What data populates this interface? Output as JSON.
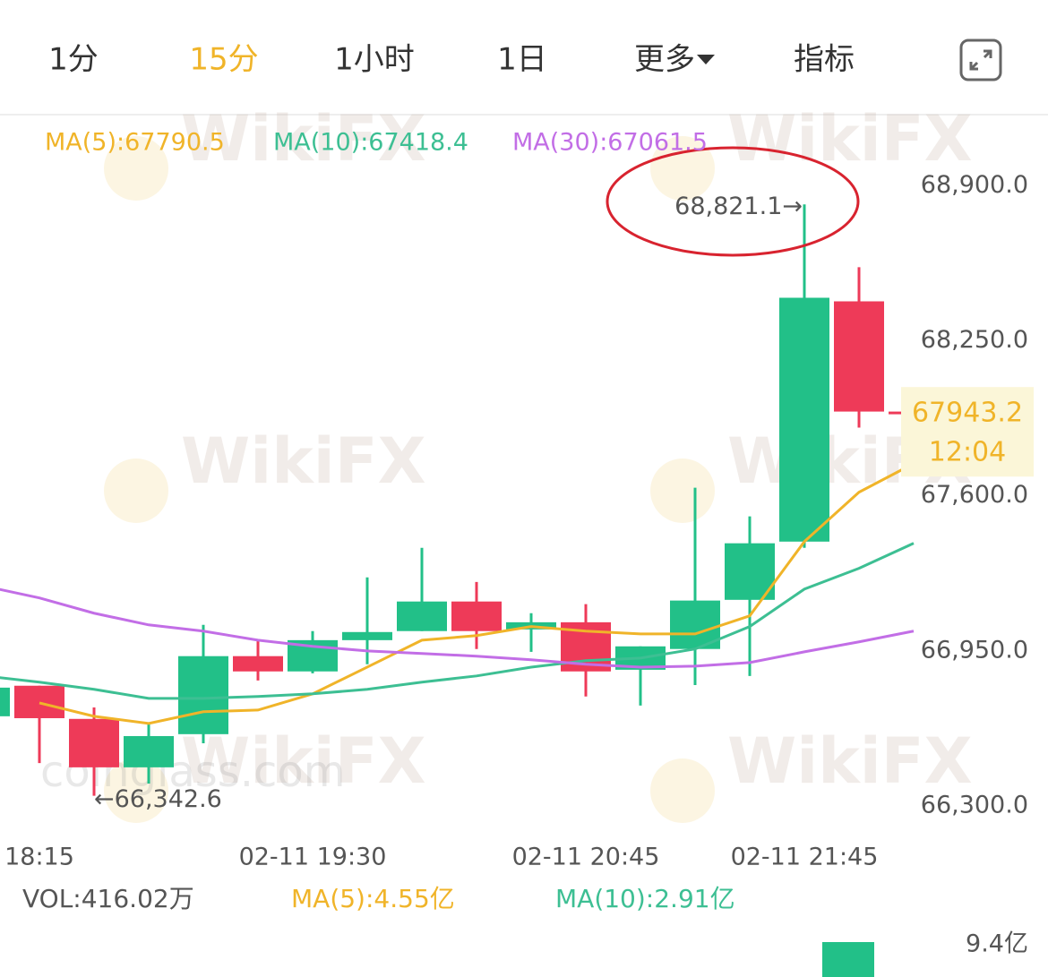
{
  "tabs": [
    "1分",
    "15分",
    "1小时",
    "1日",
    "更多",
    "指标"
  ],
  "active_tab": 1,
  "watermarks": [
    "WikiFX",
    "coinglass.com"
  ],
  "chart_data": {
    "type": "candlestick",
    "categories": [
      null,
      "18:15",
      null,
      null,
      null,
      null,
      "02-11 19:30",
      null,
      null,
      null,
      null,
      "02-11 20:45",
      null,
      null,
      null,
      "02-11 21:45",
      null,
      null
    ],
    "open": [
      66676,
      66804,
      66665,
      66462,
      66601,
      66928,
      66864,
      66995,
      67033,
      67157,
      67040,
      67070,
      66871,
      66958,
      67164,
      67408,
      68415,
      67953
    ],
    "high": [
      66826,
      66804,
      66713,
      66646,
      67059,
      66995,
      67033,
      67258,
      67382,
      67239,
      67108,
      67146,
      66969,
      67634,
      67514,
      68821.1,
      68558,
      67953
    ],
    "low": [
      66676,
      66480,
      66342.6,
      66394,
      66563,
      66826,
      66856,
      66894,
      67033,
      66958,
      66946,
      66759,
      66721,
      66807,
      66845,
      67382,
      67886,
      67943.2
    ],
    "close": [
      66796,
      66668,
      66462,
      66593,
      66928,
      66864,
      66995,
      67029,
      67157,
      67033,
      67070,
      66864,
      66969,
      67161,
      67401,
      68430,
      67953,
      67943.2
    ],
    "up_color": "#22c088",
    "down_color": "#ee3a58",
    "series": [
      {
        "name": "MA(5):67790.5",
        "color": "#f0b429",
        "values": [
          null,
          66732,
          66676,
          66646,
          66695,
          66702,
          66770,
          66882,
          66995,
          67014,
          67052,
          67033,
          67021,
          67021,
          67097,
          67408,
          67615,
          67735
        ]
      },
      {
        "name": "MA(10):67418.4",
        "color": "#3dbf93",
        "values": [
          66845,
          66819,
          66789,
          66751,
          66751,
          66759,
          66770,
          66789,
          66819,
          66845,
          66882,
          66909,
          66920,
          66958,
          67052,
          67209,
          67296,
          67401
        ]
      },
      {
        "name": "MA(30):67061.5",
        "color": "#c26ee6",
        "values": [
          67221,
          67172,
          67108,
          67059,
          67033,
          66995,
          66969,
          66950,
          66939,
          66928,
          66913,
          66894,
          66882,
          66886,
          66901,
          66946,
          66988,
          67033
        ]
      }
    ],
    "ylim": [
      66150,
      69190
    ],
    "yticks": [
      {
        "value": 68900,
        "label": "68,900.0"
      },
      {
        "value": 68250,
        "label": "68,250.0"
      },
      {
        "value": 67600,
        "label": "67,600.0"
      },
      {
        "value": 66950,
        "label": "66,950.0"
      },
      {
        "value": 66300,
        "label": "66,300.0"
      }
    ],
    "high_label": "68,821.1→",
    "low_label": "←66,342.6",
    "last_price": 67943.2,
    "countdown": "12:04",
    "volume": {
      "title": "VOL:416.02万",
      "ma5": "MA(5):4.55亿",
      "ma10": "MA(10):2.91亿",
      "axis_label": "9.4亿"
    }
  }
}
